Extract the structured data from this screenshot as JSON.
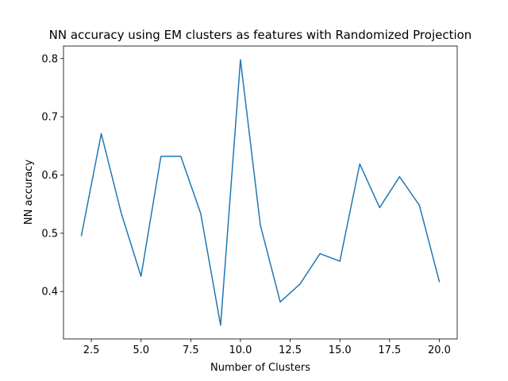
{
  "chart_data": {
    "type": "line",
    "title": "NN accuracy using EM clusters as features with Randomized Projection",
    "xlabel": "Number of Clusters",
    "ylabel": "NN accuracy",
    "xlim": [
      1.1,
      20.9
    ],
    "ylim": [
      0.3185,
      0.8215
    ],
    "xticks": [
      2.5,
      5.0,
      7.5,
      10.0,
      12.5,
      15.0,
      17.5,
      20.0
    ],
    "xtick_labels": [
      "2.5",
      "5.0",
      "7.5",
      "10.0",
      "12.5",
      "15.0",
      "17.5",
      "20.0"
    ],
    "yticks": [
      0.4,
      0.5,
      0.6,
      0.7,
      0.8
    ],
    "ytick_labels": [
      "0.4",
      "0.5",
      "0.6",
      "0.7",
      "0.8"
    ],
    "grid": false,
    "line_color": "#1f77b4",
    "series": [
      {
        "x": [
          2,
          3,
          4,
          5,
          6,
          7,
          8,
          9,
          10,
          11,
          12,
          13,
          14,
          15,
          16,
          17,
          18,
          19,
          20
        ],
        "values": [
          0.496,
          0.671,
          0.535,
          0.426,
          0.632,
          0.632,
          0.534,
          0.342,
          0.798,
          0.514,
          0.382,
          0.413,
          0.465,
          0.452,
          0.619,
          0.544,
          0.597,
          0.548,
          0.417
        ]
      }
    ]
  }
}
